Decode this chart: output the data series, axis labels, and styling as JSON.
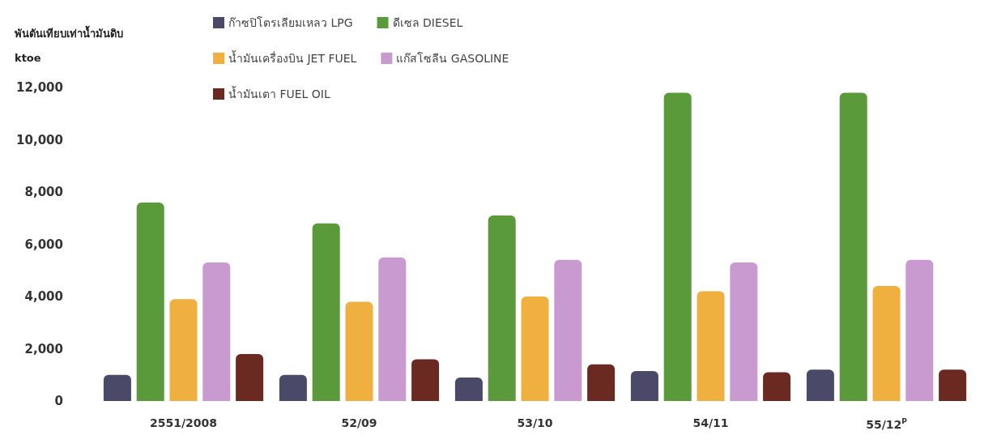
{
  "chart_data": {
    "type": "bar",
    "ylabel": "พันตันเทียบเท่าน้ำมันดิบ\nktoe",
    "categories": [
      "2551/2008",
      "52/09",
      "53/10",
      "54/11",
      "55/12$^{P}$"
    ],
    "series": [
      {
        "name": "ก๊าซปิโตรเลียมเหลว LPG",
        "color": "#4a4a68",
        "values": [
          1000,
          1000,
          900,
          1150,
          1200
        ]
      },
      {
        "name": "ดีเซล DIESEL",
        "color": "#5a9a3a",
        "values": [
          7600,
          6800,
          7100,
          11800,
          11800
        ]
      },
      {
        "name": "น้ำมันเครื่องบิน JET FUEL",
        "color": "#f0b040",
        "values": [
          3900,
          3800,
          4000,
          4200,
          4400
        ]
      },
      {
        "name": "แก๊สโซลีน GASOLINE",
        "color": "#c89ad0",
        "values": [
          5300,
          5500,
          5400,
          5300,
          5400
        ]
      },
      {
        "name": "น้ำมันเตา FUEL OIL",
        "color": "#6a2a22",
        "values": [
          1800,
          1600,
          1400,
          1100,
          1200
        ]
      }
    ],
    "ylim": [
      0,
      12000
    ],
    "yticks": [
      0,
      {
        "value": 2000,
        "label": "2,000"
      },
      {
        "value": 4000,
        "label": "4,000"
      },
      {
        "value": 6000,
        "label": "6,000"
      },
      {
        "value": 8000,
        "label": "8,000"
      },
      {
        "value": 10000,
        "label": "10,000"
      },
      {
        "value": 12000,
        "label": "12,000"
      }
    ],
    "grid": false,
    "legend": "top"
  }
}
